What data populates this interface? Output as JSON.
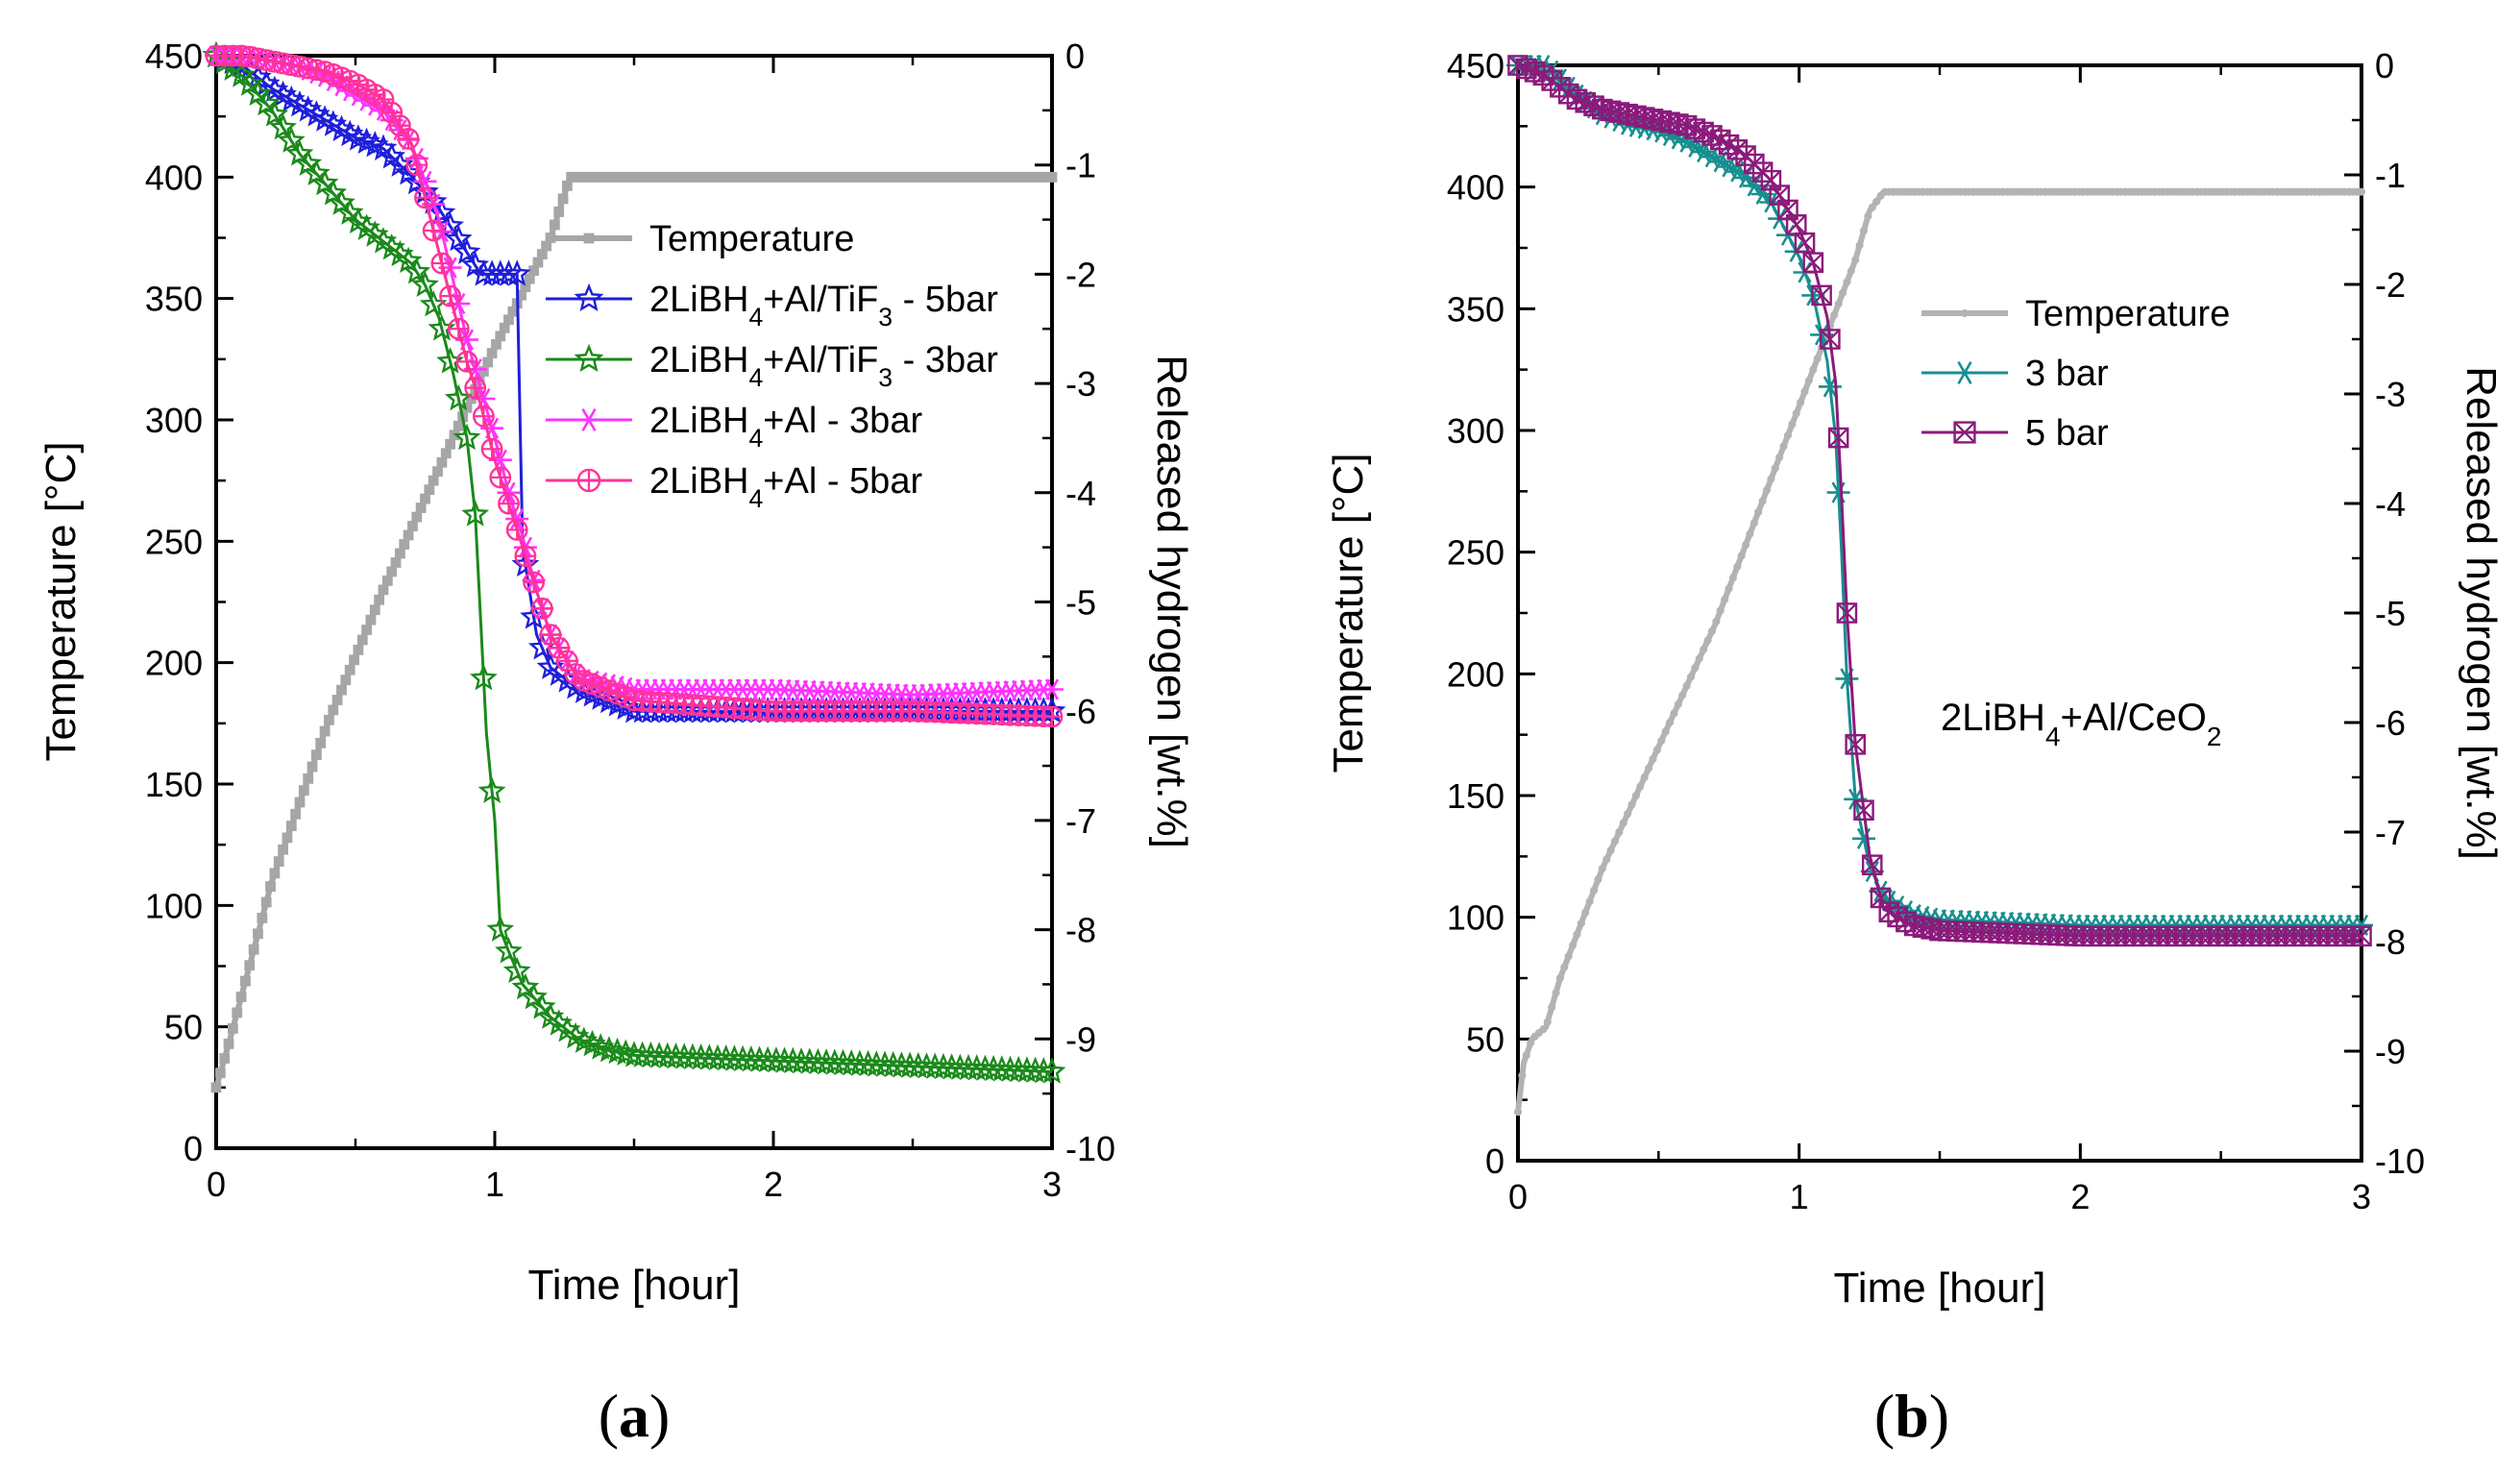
{
  "chart_data": [
    {
      "type": "line",
      "panel_label": "a",
      "xlabel": "Time [hour]",
      "ylabel_left": "Temperature [°C]",
      "ylabel_right": "Released hydrogen [wt.%]",
      "xlim": [
        0,
        3
      ],
      "ylim_left": [
        0,
        450
      ],
      "ylim_right": [
        -10,
        0
      ],
      "x_ticks": [
        "0",
        "1",
        "2",
        "3"
      ],
      "y_left_ticks": [
        "0",
        "50",
        "100",
        "150",
        "200",
        "250",
        "300",
        "350",
        "400",
        "450"
      ],
      "y_right_ticks": [
        "0",
        "-1",
        "-2",
        "-3",
        "-4",
        "-5",
        "-6",
        "-7",
        "-8",
        "-9",
        "-10"
      ],
      "legend_position": "top-right",
      "series": [
        {
          "name": "Temperature",
          "axis": "left",
          "color": "#a6a6a6",
          "marker": "square",
          "x": [
            0,
            0.05,
            0.2,
            0.4,
            0.6,
            0.8,
            1.0,
            1.2,
            1.27,
            1.5,
            2.0,
            2.5,
            3.0
          ],
          "y": [
            25,
            45,
            110,
            175,
            230,
            280,
            330,
            375,
            400,
            400,
            400,
            400,
            400
          ]
        },
        {
          "name": "2LiBH4+Al/TiF3 - 5bar",
          "axis": "right",
          "color": "#1f1fd9",
          "marker": "star",
          "x": [
            0,
            0.1,
            0.2,
            0.3,
            0.4,
            0.5,
            0.6,
            0.7,
            0.8,
            0.85,
            0.9,
            0.95,
            1.0,
            1.05,
            1.08,
            1.1,
            1.15,
            1.2,
            1.3,
            1.4,
            1.5,
            2.0,
            2.5,
            3.0
          ],
          "y": [
            0,
            -0.1,
            -0.3,
            -0.45,
            -0.6,
            -0.75,
            -0.85,
            -1.1,
            -1.4,
            -1.6,
            -1.8,
            -2.0,
            -2.0,
            -2.0,
            -2.0,
            -4.5,
            -5.3,
            -5.6,
            -5.8,
            -5.9,
            -6.0,
            -6.0,
            -6.0,
            -6.0
          ]
        },
        {
          "name": "2LiBH4+Al/TiF3 - 3bar",
          "axis": "right",
          "color": "#1a8a1a",
          "marker": "star",
          "x": [
            0,
            0.1,
            0.2,
            0.3,
            0.4,
            0.5,
            0.6,
            0.7,
            0.75,
            0.8,
            0.85,
            0.9,
            0.93,
            0.95,
            0.97,
            1.0,
            1.02,
            1.05,
            1.1,
            1.2,
            1.3,
            1.4,
            1.5,
            2.0,
            2.5,
            3.0
          ],
          "y": [
            0,
            -0.2,
            -0.5,
            -0.9,
            -1.2,
            -1.5,
            -1.7,
            -1.9,
            -2.1,
            -2.4,
            -2.9,
            -3.5,
            -4.2,
            -5.2,
            -6.2,
            -7.0,
            -8.0,
            -8.2,
            -8.5,
            -8.8,
            -9.0,
            -9.1,
            -9.15,
            -9.2,
            -9.25,
            -9.3
          ]
        },
        {
          "name": "2LiBH4+Al - 3bar",
          "axis": "right",
          "color": "#ff33ff",
          "marker": "asterisk",
          "x": [
            0,
            0.1,
            0.2,
            0.3,
            0.4,
            0.5,
            0.6,
            0.7,
            0.8,
            0.9,
            1.0,
            1.05,
            1.1,
            1.15,
            1.2,
            1.25,
            1.3,
            1.4,
            1.5,
            2.0,
            2.5,
            3.0
          ],
          "y": [
            0,
            0,
            -0.05,
            -0.1,
            -0.2,
            -0.35,
            -0.5,
            -0.8,
            -1.5,
            -2.6,
            -3.5,
            -4.0,
            -4.4,
            -4.9,
            -5.3,
            -5.5,
            -5.7,
            -5.75,
            -5.8,
            -5.8,
            -5.85,
            -5.8
          ]
        },
        {
          "name": "2LiBH4+Al - 5bar",
          "axis": "right",
          "color": "#ff3399",
          "marker": "circle-plus",
          "x": [
            0,
            0.1,
            0.2,
            0.3,
            0.4,
            0.5,
            0.6,
            0.7,
            0.75,
            0.8,
            0.85,
            0.9,
            0.95,
            1.0,
            1.05,
            1.1,
            1.15,
            1.2,
            1.25,
            1.3,
            1.4,
            1.5,
            2.0,
            2.5,
            3.0
          ],
          "y": [
            0,
            0,
            -0.05,
            -0.1,
            -0.15,
            -0.25,
            -0.4,
            -0.8,
            -1.3,
            -1.8,
            -2.3,
            -2.8,
            -3.2,
            -3.7,
            -4.1,
            -4.5,
            -4.9,
            -5.3,
            -5.5,
            -5.7,
            -5.8,
            -5.9,
            -6.0,
            -6.0,
            -6.05
          ]
        }
      ],
      "legend": {
        "items": [
          {
            "label": "Temperature"
          },
          {
            "label": "2LiBH4+Al/TiF3 - 5bar"
          },
          {
            "label": "2LiBH4+Al/TiF3 - 3bar"
          },
          {
            "label": "2LiBH4+Al - 3bar"
          },
          {
            "label": "2LiBH4+Al - 5bar"
          }
        ]
      }
    },
    {
      "type": "line",
      "panel_label": "b",
      "xlabel": "Time [hour]",
      "ylabel_left": "Temperature [°C]",
      "ylabel_right": "Released hydrogen [wt.%]",
      "annotation": "2LiBH4+Al/CeO2",
      "xlim": [
        0,
        3
      ],
      "ylim_left": [
        0,
        450
      ],
      "ylim_right": [
        -10,
        0
      ],
      "x_ticks": [
        "0",
        "1",
        "2",
        "3"
      ],
      "y_left_ticks": [
        "0",
        "50",
        "100",
        "150",
        "200",
        "250",
        "300",
        "350",
        "400",
        "450"
      ],
      "y_right_ticks": [
        "0",
        "-1",
        "-2",
        "-3",
        "-4",
        "-5",
        "-6",
        "-7",
        "-8",
        "-9",
        "-10"
      ],
      "legend_position": "top-right",
      "series": [
        {
          "name": "Temperature",
          "axis": "left",
          "color": "#b3b3b3",
          "marker": "dot",
          "x": [
            0,
            0.02,
            0.05,
            0.1,
            0.15,
            0.2,
            0.3,
            0.4,
            0.5,
            0.6,
            0.7,
            0.8,
            0.9,
            1.0,
            1.1,
            1.2,
            1.25,
            1.3,
            1.5,
            2.0,
            2.5,
            3.0
          ],
          "y": [
            20,
            40,
            50,
            55,
            75,
            90,
            120,
            145,
            170,
            195,
            220,
            250,
            280,
            310,
            340,
            370,
            390,
            398,
            398,
            398,
            398,
            398
          ]
        },
        {
          "name": "3 bar",
          "axis": "right",
          "color": "#178f8f",
          "marker": "asterisk",
          "x": [
            0,
            0.1,
            0.2,
            0.3,
            0.4,
            0.5,
            0.6,
            0.7,
            0.8,
            0.9,
            1.0,
            1.05,
            1.1,
            1.13,
            1.15,
            1.17,
            1.2,
            1.25,
            1.3,
            1.4,
            1.5,
            2.0,
            2.5,
            3.0
          ],
          "y": [
            0,
            0,
            -0.25,
            -0.45,
            -0.55,
            -0.6,
            -0.7,
            -0.85,
            -1.0,
            -1.25,
            -1.75,
            -2.1,
            -2.7,
            -3.4,
            -4.4,
            -5.6,
            -6.7,
            -7.3,
            -7.6,
            -7.75,
            -7.8,
            -7.85,
            -7.85,
            -7.85
          ]
        },
        {
          "name": "5 bar",
          "axis": "right",
          "color": "#8b1a7b",
          "marker": "x-square",
          "x": [
            0,
            0.1,
            0.2,
            0.3,
            0.4,
            0.5,
            0.6,
            0.7,
            0.8,
            0.9,
            1.0,
            1.05,
            1.1,
            1.13,
            1.15,
            1.17,
            1.2,
            1.25,
            1.3,
            1.4,
            1.5,
            2.0,
            2.5,
            3.0
          ],
          "y": [
            0,
            -0.1,
            -0.3,
            -0.4,
            -0.45,
            -0.5,
            -0.55,
            -0.65,
            -0.8,
            -1.05,
            -1.5,
            -1.8,
            -2.3,
            -2.9,
            -3.9,
            -5.0,
            -6.2,
            -7.2,
            -7.7,
            -7.85,
            -7.9,
            -7.95,
            -7.95,
            -7.95
          ]
        }
      ],
      "legend": {
        "items": [
          {
            "label": "Temperature"
          },
          {
            "label": "3 bar"
          },
          {
            "label": "5 bar"
          }
        ]
      }
    }
  ]
}
